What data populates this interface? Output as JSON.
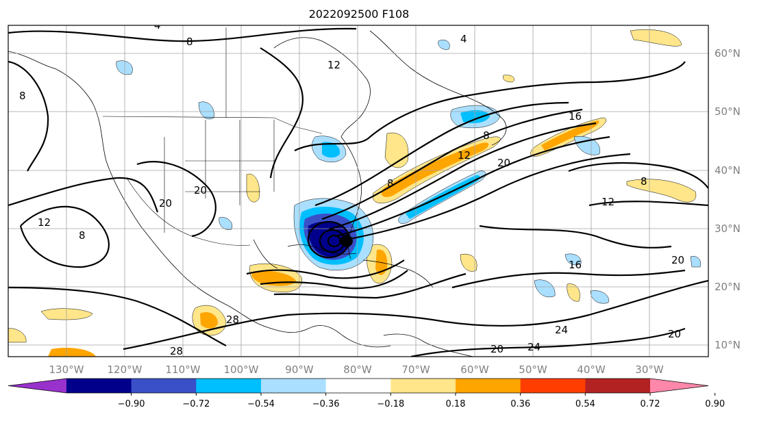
{
  "title": "2022092500 F108",
  "lon_labels": [
    "130°W",
    "120°W",
    "110°W",
    "100°W",
    "90°W",
    "80°W",
    "70°W",
    "60°W",
    "50°W",
    "40°W",
    "30°W"
  ],
  "lat_labels": [
    "60°N",
    "50°N",
    "40°N",
    "30°N",
    "20°N",
    "10°N"
  ],
  "colorbar": {
    "ticks": [
      "−0.90",
      "−0.72",
      "−0.54",
      "−0.36",
      "−0.18",
      "0.18",
      "0.36",
      "0.54",
      "0.72",
      "0.90"
    ],
    "colors": [
      "#9932cc",
      "#00008b",
      "#3a50c8",
      "#00bfff",
      "#aadfff",
      "#ffffff",
      "#ffe68a",
      "#ffa500",
      "#ff3d00",
      "#b22222",
      "#ff88aa"
    ]
  },
  "contour_labels": [
    "4",
    "8",
    "12",
    "16",
    "20",
    "24",
    "28"
  ],
  "storm_marker": "tropical-cyclone-center"
}
